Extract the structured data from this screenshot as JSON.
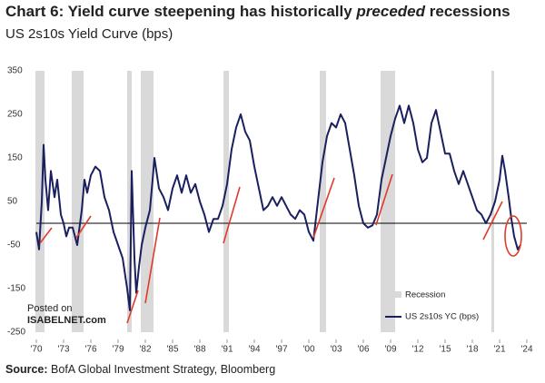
{
  "chart_data": {
    "type": "line",
    "title_parts": [
      "Chart 6: Yield curve steepening has historically",
      "preceded",
      "recessions"
    ],
    "subtitle": "US 2s10s Yield Curve (bps)",
    "source_label": "Source:",
    "source": "BofA Global Investment Strategy, Bloomberg",
    "watermark": [
      "Posted on",
      "ISABELNET.com"
    ],
    "recession_label": "Recession",
    "recession_color": "#d9d9d9",
    "recessions": [
      [
        1969.9,
        1970.9
      ],
      [
        1973.9,
        1975.2
      ],
      [
        1980.0,
        1980.5
      ],
      [
        1981.5,
        1982.9
      ],
      [
        1990.6,
        1991.2
      ],
      [
        2001.2,
        2001.9
      ],
      [
        2007.9,
        2009.5
      ],
      [
        2020.1,
        2020.4
      ]
    ],
    "reference_line": 0,
    "xlim": [
      1970,
      2024
    ],
    "xticks": [
      {
        "value": 1970,
        "label": "'70"
      },
      {
        "value": 1973,
        "label": "'73"
      },
      {
        "value": 1976,
        "label": "'76"
      },
      {
        "value": 1979,
        "label": "'79"
      },
      {
        "value": 1982,
        "label": "'82"
      },
      {
        "value": 1985,
        "label": "'85"
      },
      {
        "value": 1988,
        "label": "'88"
      },
      {
        "value": 1991,
        "label": "'91"
      },
      {
        "value": 1994,
        "label": "'94"
      },
      {
        "value": 1997,
        "label": "'97"
      },
      {
        "value": 2000,
        "label": "'00"
      },
      {
        "value": 2003,
        "label": "'03"
      },
      {
        "value": 2006,
        "label": "'06"
      },
      {
        "value": 2009,
        "label": "'09"
      },
      {
        "value": 2012,
        "label": "'12"
      },
      {
        "value": 2015,
        "label": "'15"
      },
      {
        "value": 2018,
        "label": "'18"
      },
      {
        "value": 2021,
        "label": "'21"
      },
      {
        "value": 2024,
        "label": "'24"
      }
    ],
    "ylim": [
      -250,
      350
    ],
    "yticks": [
      350,
      250,
      150,
      50,
      -50,
      -150,
      -250
    ],
    "x": [
      1970.0,
      1970.3,
      1970.6,
      1970.8,
      1971.0,
      1971.3,
      1971.6,
      1972.0,
      1972.3,
      1972.7,
      1973.0,
      1973.3,
      1973.6,
      1974.0,
      1974.5,
      1975.0,
      1975.3,
      1975.6,
      1976.0,
      1976.5,
      1977.0,
      1977.5,
      1978.0,
      1978.5,
      1979.0,
      1979.5,
      1980.0,
      1980.3,
      1980.5,
      1980.8,
      1981.0,
      1981.3,
      1981.6,
      1982.0,
      1982.5,
      1982.8,
      1983.0,
      1983.5,
      1984.0,
      1984.5,
      1985.0,
      1985.5,
      1986.0,
      1986.5,
      1987.0,
      1987.5,
      1988.0,
      1988.5,
      1989.0,
      1989.5,
      1990.0,
      1990.5,
      1991.0,
      1991.5,
      1992.0,
      1992.5,
      1993.0,
      1993.5,
      1994.0,
      1994.5,
      1995.0,
      1995.5,
      1996.0,
      1996.5,
      1997.0,
      1997.5,
      1998.0,
      1998.5,
      1999.0,
      1999.5,
      2000.0,
      2000.5,
      2001.0,
      2001.5,
      2002.0,
      2002.5,
      2003.0,
      2003.5,
      2004.0,
      2004.5,
      2005.0,
      2005.5,
      2006.0,
      2006.5,
      2007.0,
      2007.5,
      2008.0,
      2008.5,
      2009.0,
      2009.5,
      2010.0,
      2010.5,
      2011.0,
      2011.5,
      2012.0,
      2012.5,
      2013.0,
      2013.5,
      2014.0,
      2014.5,
      2015.0,
      2015.5,
      2016.0,
      2016.5,
      2017.0,
      2017.5,
      2018.0,
      2018.5,
      2019.0,
      2019.5,
      2020.0,
      2020.5,
      2021.0,
      2021.3,
      2021.6,
      2022.0,
      2022.3,
      2022.6,
      2023.0,
      2023.3
    ],
    "series": [
      {
        "name": "US 2s10s YC (bps)",
        "color": "#1a1f5e",
        "values": [
          -20,
          -60,
          50,
          180,
          100,
          30,
          120,
          60,
          100,
          20,
          0,
          -30,
          -10,
          -10,
          -50,
          30,
          100,
          70,
          110,
          130,
          120,
          60,
          30,
          -20,
          -50,
          -80,
          -150,
          -200,
          120,
          -80,
          -160,
          -100,
          -50,
          -10,
          30,
          100,
          150,
          80,
          60,
          30,
          80,
          110,
          70,
          110,
          70,
          90,
          50,
          20,
          -20,
          10,
          10,
          40,
          90,
          170,
          220,
          250,
          210,
          190,
          130,
          80,
          30,
          40,
          60,
          40,
          60,
          40,
          20,
          10,
          30,
          20,
          -20,
          -40,
          50,
          140,
          200,
          230,
          220,
          250,
          230,
          170,
          110,
          40,
          0,
          -10,
          -5,
          20,
          100,
          150,
          200,
          240,
          270,
          230,
          270,
          230,
          170,
          140,
          150,
          230,
          260,
          210,
          160,
          160,
          120,
          90,
          120,
          90,
          60,
          30,
          20,
          0,
          20,
          50,
          100,
          155,
          120,
          60,
          10,
          -30,
          -60,
          -50
        ]
      }
    ]
  }
}
